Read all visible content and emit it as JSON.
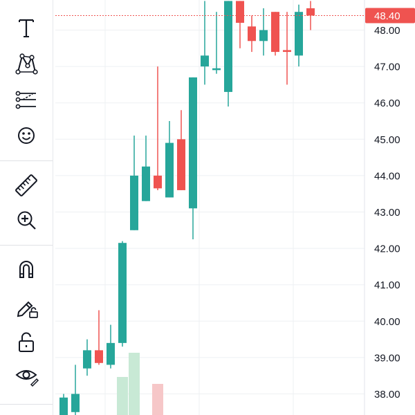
{
  "toolbar": {
    "groups": [
      [
        "partial-top-icon",
        "text-tool-icon",
        "pattern-tool-icon",
        "prediction-measurement-icon",
        "emoji-icon"
      ],
      [
        "ruler-icon",
        "zoom-in-icon"
      ],
      [
        "magnet-icon",
        "lock-drawings-icon",
        "lock-icon",
        "eye-icon"
      ]
    ]
  },
  "colors": {
    "up": "#26a69a",
    "down": "#ef5350",
    "up_volume": "#c8e9d5",
    "down_volume": "#f6c7c8",
    "grid": "#eef0f3",
    "axis_text": "#131722",
    "last_price_label_bg": "#ef5350",
    "last_price_label_text": "#ffffff"
  },
  "chart_data": {
    "type": "candlestick",
    "y_axis": {
      "ticks": [
        "38.00",
        "39.00",
        "40.00",
        "41.00",
        "42.00",
        "43.00",
        "44.00",
        "45.00",
        "46.00",
        "47.00",
        "48.00"
      ],
      "ylim": [
        37.5,
        48.8
      ]
    },
    "last_price": {
      "value": 48.4,
      "label": "48.40"
    },
    "grid": true,
    "candles": [
      {
        "o": 37.4,
        "h": 38.0,
        "l": 37.0,
        "c": 37.9
      },
      {
        "o": 37.5,
        "h": 38.8,
        "l": 37.3,
        "c": 38.0
      },
      {
        "o": 38.7,
        "h": 39.5,
        "l": 38.5,
        "c": 39.2
      },
      {
        "o": 39.2,
        "h": 40.3,
        "l": 38.8,
        "c": 38.85
      },
      {
        "o": 38.8,
        "h": 39.9,
        "l": 38.7,
        "c": 39.4
      },
      {
        "o": 39.4,
        "h": 42.2,
        "l": 39.3,
        "c": 42.15
      },
      {
        "o": 42.5,
        "h": 45.1,
        "l": 42.5,
        "c": 44.0
      },
      {
        "o": 43.3,
        "h": 45.1,
        "l": 43.3,
        "c": 44.25
      },
      {
        "o": 44.0,
        "h": 47.0,
        "l": 43.6,
        "c": 43.65
      },
      {
        "o": 43.4,
        "h": 45.5,
        "l": 43.4,
        "c": 44.9
      },
      {
        "o": 45.0,
        "h": 45.8,
        "l": 43.6,
        "c": 43.6
      },
      {
        "o": 43.1,
        "h": 46.7,
        "l": 42.25,
        "c": 46.7
      },
      {
        "o": 47.0,
        "h": 48.8,
        "l": 46.5,
        "c": 47.3
      },
      {
        "o": 46.9,
        "h": 48.5,
        "l": 46.8,
        "c": 46.95
      },
      {
        "o": 46.3,
        "h": 48.8,
        "l": 45.9,
        "c": 48.8
      },
      {
        "o": 48.8,
        "h": 48.8,
        "l": 47.5,
        "c": 48.2
      },
      {
        "o": 48.1,
        "h": 48.4,
        "l": 47.4,
        "c": 47.7
      },
      {
        "o": 47.7,
        "h": 48.6,
        "l": 47.3,
        "c": 48.0
      },
      {
        "o": 48.5,
        "h": 48.5,
        "l": 47.3,
        "c": 47.4
      },
      {
        "o": 47.45,
        "h": 48.5,
        "l": 46.5,
        "c": 47.4
      },
      {
        "o": 47.3,
        "h": 48.7,
        "l": 47.0,
        "c": 48.5
      },
      {
        "o": 48.6,
        "h": 48.8,
        "l": 48.0,
        "c": 48.4
      }
    ],
    "volume": [
      {
        "index": 5,
        "direction": "up",
        "value": 0.55
      },
      {
        "index": 6,
        "direction": "up",
        "value": 0.9
      },
      {
        "index": 8,
        "direction": "down",
        "value": 0.45
      }
    ]
  }
}
